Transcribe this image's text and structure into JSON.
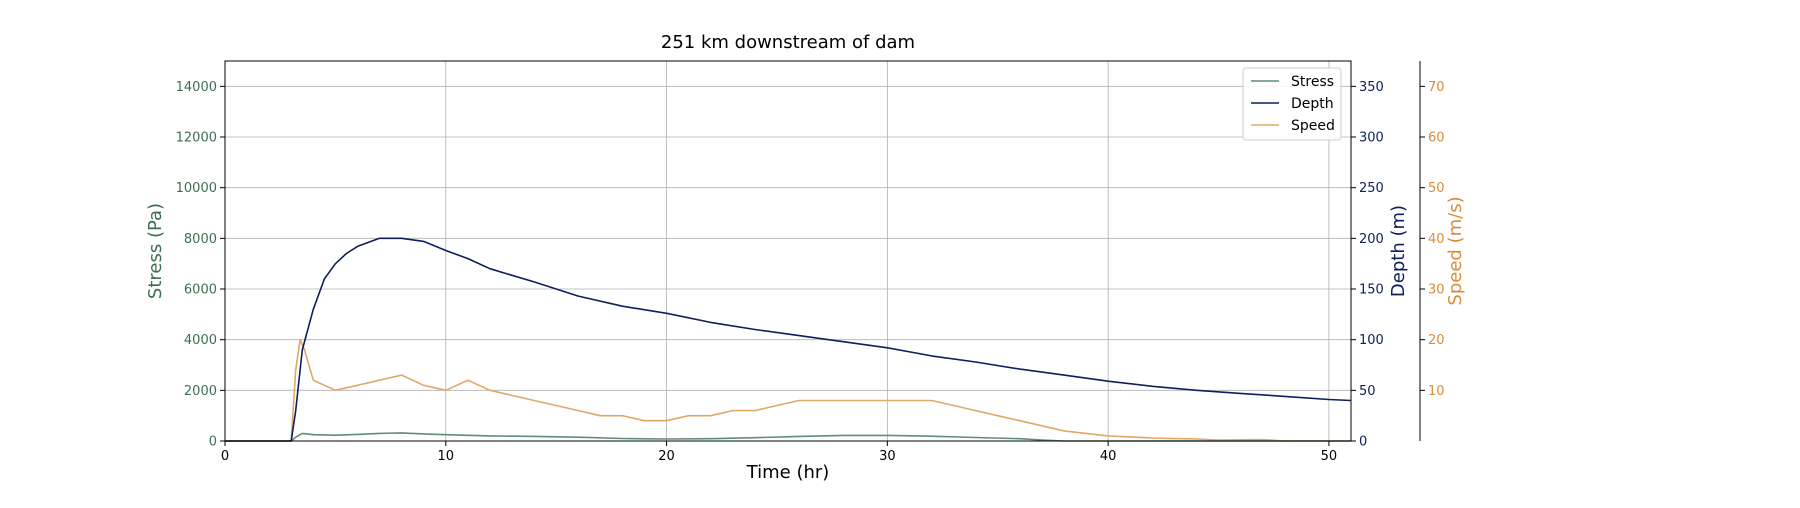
{
  "chart_data": {
    "type": "line",
    "title": "251 km downstream of dam",
    "xlabel": "Time (hr)",
    "x_ticks": [
      "0",
      "10",
      "20",
      "30",
      "40",
      "50"
    ],
    "xlim": [
      0,
      51
    ],
    "grid": true,
    "legend_position": "top-right",
    "axes": {
      "stress": {
        "label": "Stress (Pa)",
        "color": "#3a7050",
        "ylim": [
          0,
          15000
        ],
        "ticks": [
          "0",
          "2000",
          "4000",
          "6000",
          "8000",
          "10000",
          "12000",
          "14000"
        ],
        "side": "left"
      },
      "depth": {
        "label": "Depth (m)",
        "color": "#0d1f5c",
        "ylim": [
          0,
          375
        ],
        "ticks": [
          "0",
          "50",
          "100",
          "150",
          "200",
          "250",
          "300",
          "350"
        ],
        "side": "right"
      },
      "speed": {
        "label": "Speed (m/s)",
        "color": "#d98c3a",
        "ylim": [
          0,
          75
        ],
        "ticks": [
          "10",
          "20",
          "30",
          "40",
          "50",
          "60",
          "70"
        ],
        "side": "right-outer"
      }
    },
    "series": [
      {
        "name": "Stress",
        "axis": "stress",
        "color": "#5f8f72",
        "x": [
          0,
          3.0,
          3.2,
          3.5,
          4,
          5,
          6,
          7,
          8,
          9,
          10,
          12,
          14,
          16,
          18,
          20,
          22,
          24,
          26,
          28,
          30,
          32,
          34,
          36,
          37,
          38,
          51
        ],
        "y": [
          0,
          0,
          150,
          300,
          250,
          230,
          260,
          300,
          320,
          280,
          250,
          200,
          180,
          150,
          100,
          80,
          90,
          130,
          180,
          220,
          220,
          190,
          140,
          90,
          40,
          0,
          0
        ]
      },
      {
        "name": "Depth",
        "axis": "depth",
        "color": "#0d1f5c",
        "x": [
          0,
          3.0,
          3.2,
          3.5,
          4,
          4.5,
          5,
          5.5,
          6,
          7,
          8,
          9,
          10,
          11,
          12,
          14,
          16,
          18,
          20,
          22,
          24,
          26,
          28,
          30,
          32,
          34,
          36,
          38,
          40,
          42,
          44,
          46,
          48,
          50,
          51
        ],
        "y": [
          0,
          0,
          30,
          90,
          130,
          160,
          175,
          185,
          192,
          200,
          200,
          197,
          188,
          180,
          170,
          157,
          143,
          133,
          126,
          117,
          110,
          104,
          98,
          92,
          84,
          78,
          71,
          65,
          59,
          54,
          50,
          47,
          44,
          41,
          40
        ]
      },
      {
        "name": "Speed",
        "axis": "speed",
        "color": "#e0a868",
        "x": [
          0,
          3.0,
          3.2,
          3.4,
          3.6,
          3.8,
          4,
          5,
          6,
          7,
          8,
          9,
          10,
          11,
          12,
          13,
          14,
          15,
          16,
          17,
          18,
          19,
          20,
          21,
          22,
          23,
          24,
          25,
          26,
          27,
          28,
          29,
          30,
          31,
          32,
          33,
          34,
          35,
          36,
          37,
          38,
          39,
          40,
          41,
          42,
          43,
          44,
          45,
          47,
          48,
          51
        ],
        "y": [
          0,
          0,
          14,
          20,
          18,
          15,
          12,
          10,
          11,
          12,
          13,
          11,
          10,
          12,
          10,
          9,
          8,
          7,
          6,
          5,
          5,
          4,
          4,
          5,
          5,
          6,
          6,
          7,
          8,
          8,
          8,
          8,
          8,
          8,
          8,
          7,
          6,
          5,
          4,
          3,
          2,
          1.5,
          1,
          0.8,
          0.6,
          0.5,
          0.4,
          0.2,
          0.3,
          0,
          0
        ]
      }
    ]
  }
}
